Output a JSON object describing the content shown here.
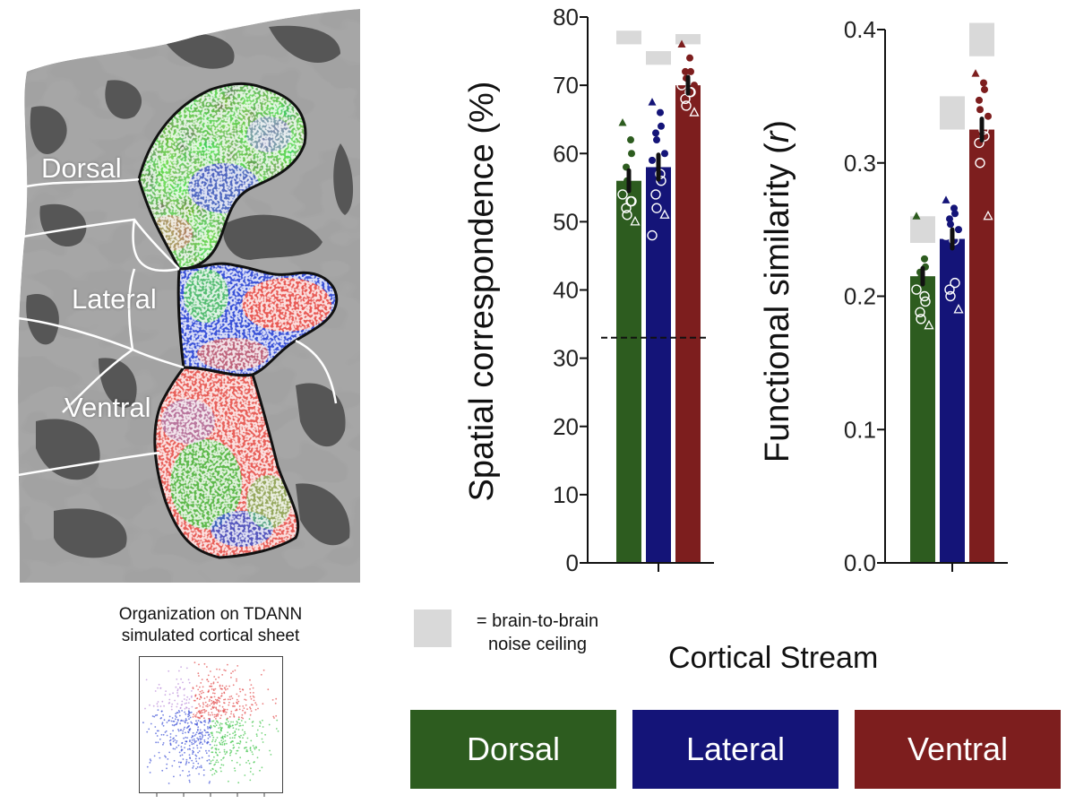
{
  "map_labels": {
    "dorsal": "Dorsal",
    "lateral": "Lateral",
    "ventral": "Ventral"
  },
  "map_caption_line1": "Organization on TDANN",
  "map_caption_line2": "simulated cortical sheet",
  "legend": {
    "text_line1": "= brain-to-brain",
    "text_line2": "noise ceiling",
    "color": "#d9d9d9"
  },
  "x_title": "Cortical Stream",
  "streams": [
    {
      "label": "Dorsal",
      "color": "#2d5c1f"
    },
    {
      "label": "Lateral",
      "color": "#141478"
    },
    {
      "label": "Ventral",
      "color": "#7d1e1e"
    }
  ],
  "chart_data": [
    {
      "type": "bar",
      "categories": [
        "Dorsal",
        "Lateral",
        "Ventral"
      ],
      "colors": [
        "#2d5c1f",
        "#141478",
        "#7d1e1e"
      ],
      "ylabel": "Spatial correspondence (%)",
      "ylim": [
        0,
        80
      ],
      "yticks": [
        0,
        10,
        20,
        30,
        40,
        50,
        60,
        70,
        80
      ],
      "values": [
        56,
        58,
        70
      ],
      "errors": [
        1.5,
        1.8,
        1.2
      ],
      "chance_line": 33,
      "noise_ceiling": [
        [
          76,
          78
        ],
        [
          73,
          75
        ],
        [
          76,
          77.5
        ]
      ],
      "points": [
        [
          64.5,
          62,
          60,
          58,
          56,
          55,
          54,
          53,
          53,
          52,
          51,
          50
        ],
        [
          67.5,
          66,
          64,
          63,
          62,
          60,
          59,
          57,
          56,
          54,
          52,
          51,
          48
        ],
        [
          76,
          74,
          72,
          72,
          71,
          70,
          70,
          69,
          69,
          68,
          67,
          66
        ]
      ]
    },
    {
      "type": "bar",
      "categories": [
        "Dorsal",
        "Lateral",
        "Ventral"
      ],
      "colors": [
        "#2d5c1f",
        "#141478",
        "#7d1e1e"
      ],
      "ylabel": "Functional similarity (r)",
      "ylim": [
        0,
        0.4
      ],
      "yticks": [
        "0.0",
        "0.1",
        "0.2",
        "0.3",
        "0.4"
      ],
      "values": [
        0.215,
        0.243,
        0.325
      ],
      "errors": [
        0.006,
        0.007,
        0.008
      ],
      "noise_ceiling": [
        [
          0.24,
          0.26
        ],
        [
          0.325,
          0.35
        ],
        [
          0.38,
          0.405
        ]
      ],
      "points": [
        [
          0.26,
          0.228,
          0.222,
          0.218,
          0.214,
          0.21,
          0.205,
          0.2,
          0.196,
          0.188,
          0.183,
          0.178
        ],
        [
          0.272,
          0.266,
          0.262,
          0.258,
          0.254,
          0.25,
          0.246,
          0.242,
          0.21,
          0.205,
          0.2,
          0.19
        ],
        [
          0.367,
          0.36,
          0.355,
          0.347,
          0.34,
          0.335,
          0.33,
          0.325,
          0.32,
          0.315,
          0.3,
          0.26
        ]
      ]
    }
  ]
}
